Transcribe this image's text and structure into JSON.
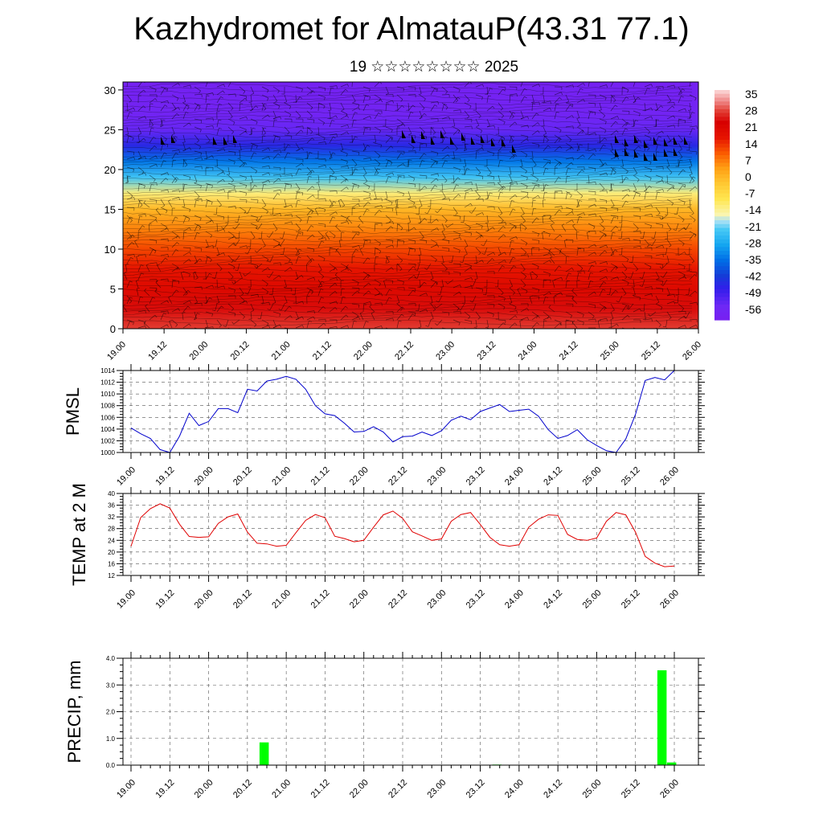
{
  "title": "Kazhydromet for AlmatauP(43.31 77.1)",
  "subtitle": "19 ☆☆☆☆☆☆☆☆ 2025",
  "time_ticks": [
    "19.00",
    "19.12",
    "20.00",
    "20.12",
    "21.00",
    "21.12",
    "22.00",
    "22.12",
    "23.00",
    "23.12",
    "24.00",
    "24.12",
    "25.00",
    "25.12",
    "26.00"
  ],
  "chart_data": [
    {
      "type": "heatmap",
      "name": "temperature-wind-cross-section",
      "x_categories": [
        "19.00",
        "19.12",
        "20.00",
        "20.12",
        "21.00",
        "21.12",
        "22.00",
        "22.12",
        "23.00",
        "23.12",
        "24.00",
        "24.12",
        "25.00",
        "25.12",
        "26.00"
      ],
      "yticks": [
        "0",
        "5",
        "10",
        "15",
        "20",
        "25",
        "30"
      ],
      "ylim": [
        0,
        31
      ],
      "colorbar_labels": [
        "35",
        "28",
        "21",
        "14",
        "7",
        "0",
        "-7",
        "-14",
        "-21",
        "-28",
        "-35",
        "-42",
        "-49",
        "-56"
      ],
      "colorbar_range": [
        -63,
        42
      ],
      "levels": [
        0,
        2.5,
        5,
        7.5,
        10,
        12.5,
        15,
        17,
        19,
        21,
        23,
        25,
        27,
        31
      ],
      "level_temperatures": [
        33,
        29,
        25,
        21,
        16,
        10,
        3,
        -10,
        -22,
        -34,
        -46,
        -55,
        -59,
        -61
      ],
      "colors": {
        "warm": "#e00000",
        "cold": "#7a1ff0"
      }
    },
    {
      "type": "line",
      "ylabel": "PMSL",
      "yticks": [
        "1000",
        "1002",
        "1004",
        "1006",
        "1008",
        "1010",
        "1012",
        "1014"
      ],
      "ylim": [
        1000,
        1014
      ],
      "step_hours": 3,
      "values": [
        1004.2,
        1003.2,
        1002.4,
        1000.5,
        1000.0,
        1002.8,
        1006.7,
        1004.6,
        1005.3,
        1007.5,
        1007.5,
        1006.8,
        1010.8,
        1010.5,
        1012.2,
        1012.5,
        1013.0,
        1012.5,
        1010.8,
        1008.0,
        1006.6,
        1006.3,
        1005.0,
        1003.5,
        1003.6,
        1004.4,
        1003.5,
        1001.8,
        1002.7,
        1002.8,
        1003.5,
        1002.9,
        1003.7,
        1005.5,
        1006.2,
        1005.6,
        1007.0,
        1007.6,
        1008.2,
        1007.0,
        1007.2,
        1007.4,
        1006.2,
        1003.9,
        1002.4,
        1002.9,
        1003.9,
        1002.2,
        1001.2,
        1000.3,
        1000.0,
        1002.3,
        1006.5,
        1012.3,
        1012.8,
        1012.4,
        1014.0
      ],
      "colors": {
        "line": "#0000cc"
      }
    },
    {
      "type": "line",
      "ylabel": "TEMP at 2 M",
      "yticks": [
        "12",
        "16",
        "20",
        "24",
        "28",
        "32",
        "36",
        "40"
      ],
      "ylim": [
        12,
        40
      ],
      "step_hours": 3,
      "values": [
        22.0,
        31.8,
        34.8,
        36.5,
        35.0,
        29.5,
        25.3,
        25.0,
        25.2,
        29.8,
        32.0,
        33.0,
        26.8,
        23.0,
        22.8,
        22.0,
        22.3,
        26.6,
        30.8,
        32.8,
        31.7,
        25.4,
        24.6,
        23.5,
        24.0,
        28.5,
        32.7,
        34.0,
        31.5,
        26.9,
        25.5,
        24.0,
        24.5,
        30.5,
        32.8,
        33.5,
        29.4,
        25.0,
        22.5,
        22.0,
        22.5,
        28.5,
        31.2,
        32.7,
        32.5,
        26.0,
        24.3,
        24.0,
        24.8,
        30.5,
        33.5,
        32.7,
        26.8,
        18.5,
        16.2,
        15.0,
        15.2
      ],
      "colors": {
        "line": "#e00000"
      }
    },
    {
      "type": "bar",
      "ylabel": "PRECIP, mm",
      "yticks": [
        "0.0",
        "1.0",
        "2.0",
        "3.0",
        "4.0"
      ],
      "ylim": [
        0,
        4
      ],
      "step_hours": 3,
      "values": [
        0,
        0,
        0,
        0,
        0,
        0,
        0,
        0,
        0,
        0,
        0,
        0,
        0,
        0.85,
        0,
        0,
        0,
        0,
        0,
        0,
        0,
        0,
        0,
        0,
        0,
        0,
        0,
        0,
        0,
        0,
        0,
        0,
        0,
        0,
        0,
        0,
        0,
        0.02,
        0,
        0,
        0,
        0,
        0,
        0,
        0,
        0,
        0,
        0,
        0,
        0,
        0,
        0,
        0,
        0,
        3.55,
        0.1,
        0
      ],
      "colors": {
        "bar": "#00ff00"
      }
    }
  ]
}
